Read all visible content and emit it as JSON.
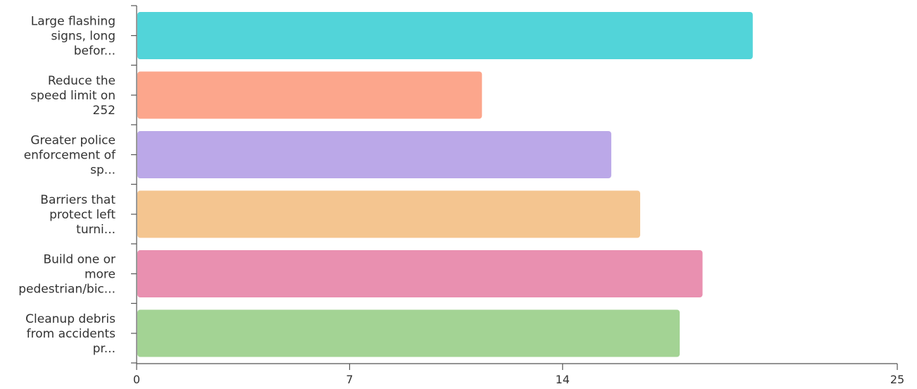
{
  "chart_data": {
    "type": "bar",
    "orientation": "horizontal",
    "categories": [
      [
        "Large flashing",
        "signs, long",
        "befor..."
      ],
      [
        "Reduce the",
        "speed limit on",
        "252"
      ],
      [
        "Greater police",
        "enforcement of",
        "sp..."
      ],
      [
        "Barriers that",
        "protect left",
        "turni..."
      ],
      [
        "Build one or",
        "more",
        "pedestrian/bic..."
      ],
      [
        "Cleanup debris",
        "from accidents",
        "pr..."
      ]
    ],
    "values": [
      20.25,
      11.35,
      15.6,
      16.55,
      18.6,
      17.85
    ],
    "colors": [
      "#52d4d9",
      "#fca68c",
      "#bba8e8",
      "#f4c590",
      "#e990b0",
      "#a3d394"
    ],
    "xlim": [
      0,
      25
    ],
    "xticks": [
      "0",
      "7",
      "14",
      "25"
    ],
    "xtick_values": [
      0,
      7,
      14,
      25
    ],
    "grid": false,
    "title": "",
    "xlabel": "",
    "ylabel": ""
  }
}
